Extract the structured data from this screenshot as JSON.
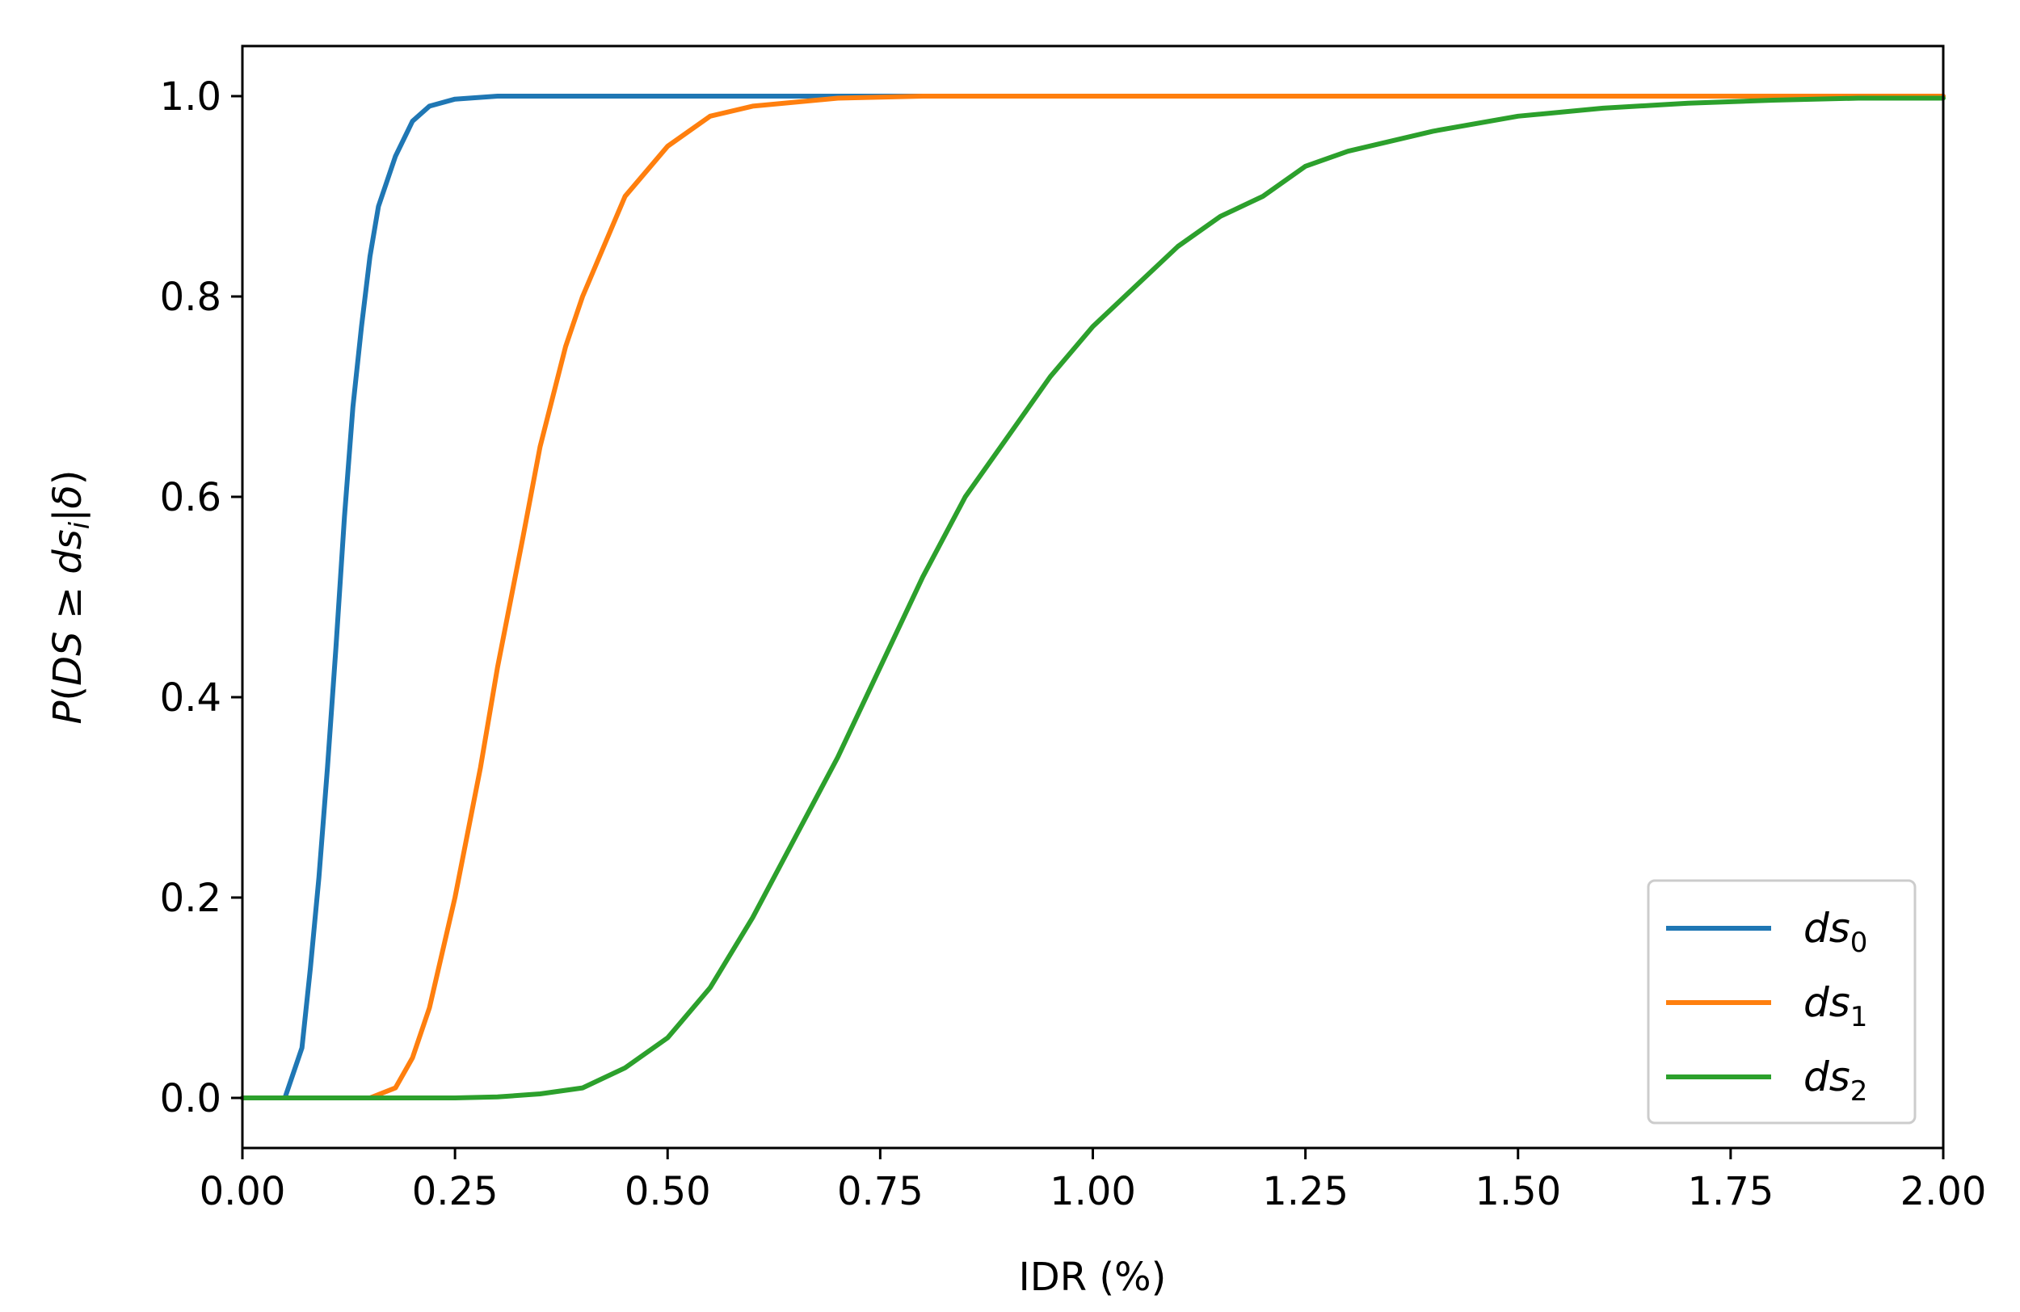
{
  "chart_data": {
    "type": "line",
    "xlabel": "IDR (%)",
    "ylabel": "P(DS ≥ ds_i|δ)",
    "xlim": [
      0.0,
      2.0
    ],
    "ylim": [
      -0.05,
      1.05
    ],
    "xticks": [
      "0.00",
      "0.25",
      "0.50",
      "0.75",
      "1.00",
      "1.25",
      "1.50",
      "1.75",
      "2.00"
    ],
    "yticks": [
      "0.0",
      "0.2",
      "0.4",
      "0.6",
      "0.8",
      "1.0"
    ],
    "grid": false,
    "legend_position": "bottom-right",
    "series": [
      {
        "name": "ds0",
        "color": "#1f77b4",
        "points": [
          [
            0.0,
            0.0
          ],
          [
            0.05,
            0.0
          ],
          [
            0.07,
            0.05
          ],
          [
            0.08,
            0.13
          ],
          [
            0.09,
            0.22
          ],
          [
            0.1,
            0.33
          ],
          [
            0.11,
            0.45
          ],
          [
            0.12,
            0.58
          ],
          [
            0.13,
            0.69
          ],
          [
            0.14,
            0.77
          ],
          [
            0.15,
            0.84
          ],
          [
            0.16,
            0.89
          ],
          [
            0.18,
            0.94
          ],
          [
            0.2,
            0.975
          ],
          [
            0.22,
            0.99
          ],
          [
            0.25,
            0.997
          ],
          [
            0.3,
            1.0
          ],
          [
            2.0,
            1.0
          ]
        ]
      },
      {
        "name": "ds1",
        "color": "#ff7f0e",
        "points": [
          [
            0.0,
            0.0
          ],
          [
            0.15,
            0.0
          ],
          [
            0.18,
            0.01
          ],
          [
            0.2,
            0.04
          ],
          [
            0.22,
            0.09
          ],
          [
            0.25,
            0.2
          ],
          [
            0.28,
            0.33
          ],
          [
            0.3,
            0.43
          ],
          [
            0.33,
            0.56
          ],
          [
            0.35,
            0.65
          ],
          [
            0.38,
            0.75
          ],
          [
            0.4,
            0.8
          ],
          [
            0.45,
            0.9
          ],
          [
            0.5,
            0.95
          ],
          [
            0.55,
            0.98
          ],
          [
            0.6,
            0.99
          ],
          [
            0.7,
            0.998
          ],
          [
            0.8,
            1.0
          ],
          [
            2.0,
            1.0
          ]
        ]
      },
      {
        "name": "ds2",
        "color": "#2ca02c",
        "points": [
          [
            0.0,
            0.0
          ],
          [
            0.25,
            0.0
          ],
          [
            0.3,
            0.001
          ],
          [
            0.35,
            0.004
          ],
          [
            0.4,
            0.01
          ],
          [
            0.45,
            0.03
          ],
          [
            0.5,
            0.06
          ],
          [
            0.55,
            0.11
          ],
          [
            0.6,
            0.18
          ],
          [
            0.65,
            0.26
          ],
          [
            0.7,
            0.34
          ],
          [
            0.75,
            0.43
          ],
          [
            0.8,
            0.52
          ],
          [
            0.85,
            0.6
          ],
          [
            0.9,
            0.66
          ],
          [
            0.95,
            0.72
          ],
          [
            1.0,
            0.77
          ],
          [
            1.05,
            0.81
          ],
          [
            1.1,
            0.85
          ],
          [
            1.15,
            0.88
          ],
          [
            1.2,
            0.9
          ],
          [
            1.25,
            0.93
          ],
          [
            1.3,
            0.945
          ],
          [
            1.35,
            0.955
          ],
          [
            1.4,
            0.965
          ],
          [
            1.5,
            0.98
          ],
          [
            1.6,
            0.988
          ],
          [
            1.7,
            0.993
          ],
          [
            1.8,
            0.996
          ],
          [
            1.9,
            0.998
          ],
          [
            2.0,
            0.998
          ]
        ]
      }
    ]
  },
  "legend": {
    "items": [
      {
        "base": "ds",
        "sub": "0",
        "color": "#1f77b4"
      },
      {
        "base": "ds",
        "sub": "1",
        "color": "#ff7f0e"
      },
      {
        "base": "ds",
        "sub": "2",
        "color": "#2ca02c"
      }
    ]
  }
}
